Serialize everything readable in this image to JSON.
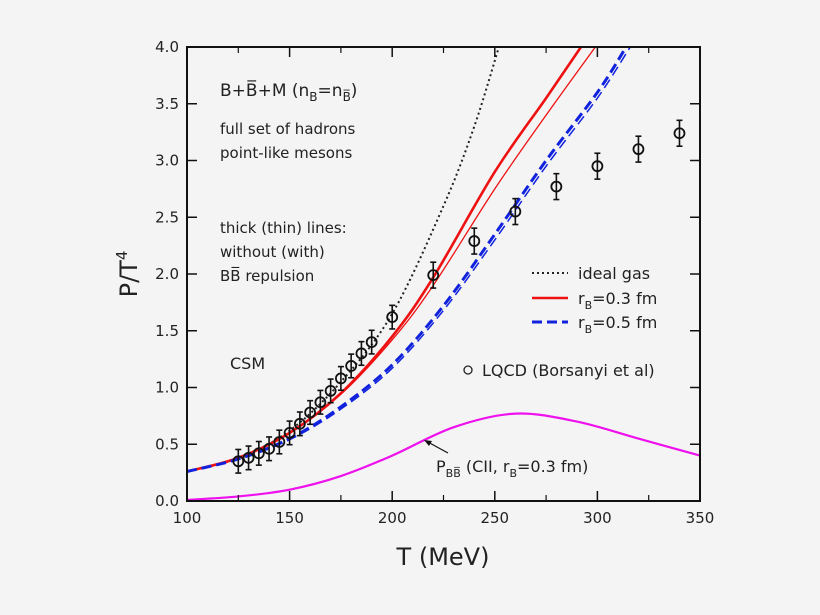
{
  "chart_data": {
    "type": "line",
    "xlabel": "T (MeV)",
    "ylabel": {
      "main": "P/T",
      "sup": "4"
    },
    "xlim": [
      100,
      350
    ],
    "ylim": [
      0,
      4.0
    ],
    "xticks": [
      "100",
      "150",
      "200",
      "250",
      "300",
      "350"
    ],
    "yticks": [
      "0.0",
      "0.5",
      "1.0",
      "1.5",
      "2.0",
      "2.5",
      "3.0",
      "3.5",
      "4.0"
    ],
    "grid": false,
    "legend_position": "right",
    "annotations": {
      "title_line": {
        "pre": "B+B̅+M (n",
        "sub1": "B",
        "mid": "=n",
        "sub2": "B̅",
        "post": ")"
      },
      "line1": "full set of hadrons",
      "line2": "point-like mesons",
      "line3": "thick (thin) lines:",
      "line4": "without (with)",
      "line5": "BB̅ repulsion",
      "csm": "CSM",
      "pbb": {
        "pre": "P",
        "sub": "BB̅",
        "post": " (CII, r",
        "sub2": "B",
        "post2": "=0.3 fm)"
      }
    },
    "series": [
      {
        "name": "ideal gas",
        "style": "dotted",
        "color": "#222222",
        "x": [
          100,
          125,
          150,
          175,
          200,
          225,
          240,
          252
        ],
        "y": [
          0.26,
          0.38,
          0.62,
          1.05,
          1.65,
          2.6,
          3.3,
          4.0
        ]
      },
      {
        "name": "rB=0.3 fm",
        "legend": {
          "main": "r",
          "sub": "B",
          "rest": "=0.3 fm"
        },
        "style": "solid-thick",
        "color": "#ee1111",
        "x": [
          100,
          125,
          150,
          175,
          200,
          220,
          250,
          275,
          292
        ],
        "y": [
          0.26,
          0.38,
          0.6,
          0.95,
          1.45,
          1.97,
          2.9,
          3.55,
          4.0
        ]
      },
      {
        "name": "rB=0.3 fm (with BB̅ repulsion)",
        "style": "solid-thin",
        "color": "#ee1111",
        "x": [
          100,
          125,
          150,
          175,
          200,
          220,
          250,
          275,
          299
        ],
        "y": [
          0.26,
          0.38,
          0.6,
          0.94,
          1.42,
          1.9,
          2.75,
          3.4,
          4.0
        ]
      },
      {
        "name": "rB=0.5 fm",
        "legend": {
          "main": "r",
          "sub": "B",
          "rest": "=0.5 fm"
        },
        "style": "dashed-thick",
        "color": "#1122dd",
        "x": [
          100,
          125,
          150,
          175,
          200,
          225,
          250,
          275,
          300,
          314
        ],
        "y": [
          0.26,
          0.37,
          0.55,
          0.83,
          1.2,
          1.72,
          2.35,
          3.0,
          3.6,
          4.0
        ]
      },
      {
        "name": "rB=0.5 fm (with BB̅ repulsion)",
        "style": "dashed-thin",
        "color": "#1122dd",
        "x": [
          100,
          125,
          150,
          175,
          200,
          225,
          250,
          275,
          300,
          316
        ],
        "y": [
          0.26,
          0.37,
          0.54,
          0.81,
          1.17,
          1.68,
          2.3,
          2.95,
          3.55,
          4.0
        ]
      },
      {
        "name": "P_BB̅",
        "style": "solid",
        "color": "#ee11ee",
        "x": [
          100,
          125,
          150,
          175,
          200,
          230,
          260,
          290,
          320,
          350
        ],
        "y": [
          0.01,
          0.04,
          0.1,
          0.22,
          0.4,
          0.65,
          0.77,
          0.7,
          0.55,
          0.4
        ]
      }
    ],
    "points": {
      "name": "LQCD (Borsanyi et al)",
      "x": [
        125,
        130,
        135,
        140,
        145,
        150,
        155,
        160,
        165,
        170,
        175,
        180,
        185,
        190,
        200,
        220,
        240,
        260,
        280,
        300,
        320,
        340
      ],
      "y": [
        0.35,
        0.38,
        0.42,
        0.46,
        0.52,
        0.6,
        0.68,
        0.78,
        0.87,
        0.97,
        1.08,
        1.19,
        1.3,
        1.4,
        1.62,
        1.99,
        2.29,
        2.55,
        2.77,
        2.95,
        3.1,
        3.24
      ],
      "err": [
        0.06,
        0.06,
        0.06,
        0.06,
        0.06,
        0.06,
        0.06,
        0.06,
        0.06,
        0.06,
        0.06,
        0.06,
        0.06,
        0.06,
        0.06,
        0.07,
        0.07,
        0.07,
        0.07,
        0.07,
        0.07,
        0.07
      ]
    }
  }
}
